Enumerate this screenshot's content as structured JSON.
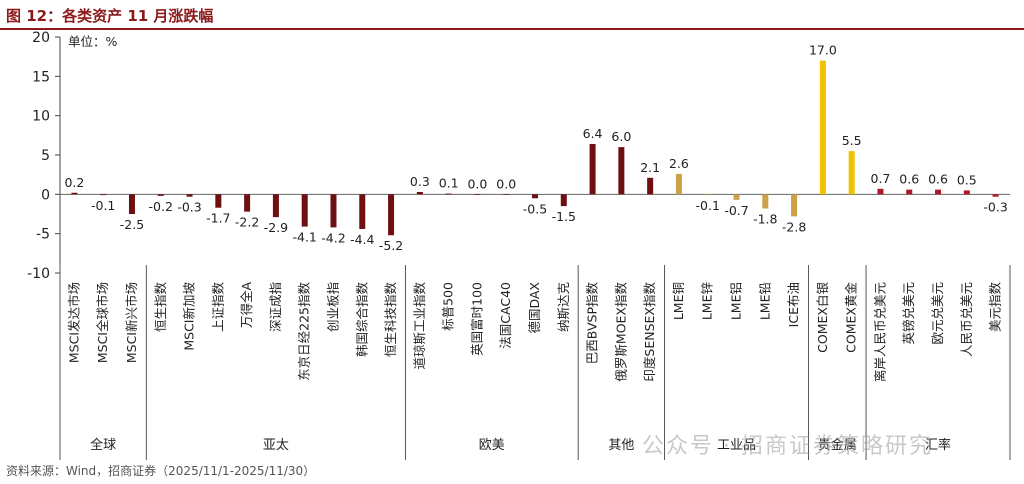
{
  "header": {
    "title": "图 12：各类资产 11 月涨跌幅"
  },
  "footer": {
    "source": "资料来源：Wind，招商证券（2025/11/1-2025/11/30）"
  },
  "watermark": {
    "text": "公众号 · 招商证券策略研究"
  },
  "colors": {
    "title": "#8b1a1a",
    "darkred": "#6e0f14",
    "gold": "#c9a24a",
    "yellow": "#f2c200",
    "red": "#b0172b"
  },
  "chart_data": {
    "type": "bar",
    "unit_label": "单位：%",
    "ylim": [
      -10,
      20
    ],
    "yticks": [
      -10,
      -5,
      0,
      5,
      10,
      15,
      20
    ],
    "grid": false,
    "categories": [
      "MSCI发达市场",
      "MSCI全球市场",
      "MSCI新兴市场",
      "恒生指数",
      "MSCI新加坡",
      "上证指数",
      "万得全A",
      "深证成指",
      "东京日经225指数",
      "创业板指",
      "韩国综合指数",
      "恒生科技指数",
      "道琼斯工业指数",
      "标普500",
      "英国富时100",
      "法国CAC40",
      "德国DAX",
      "纳斯达克",
      "巴西BVSP指数",
      "俄罗斯MOEX指数",
      "印度SENSEX指数",
      "LME铜",
      "LME锌",
      "LME铝",
      "LME铅",
      "ICE布油",
      "COMEX白银",
      "COMEX黄金",
      "离岸人民币兑美元",
      "英镑兑美元",
      "欧元兑美元",
      "人民币兑美元",
      "美元指数"
    ],
    "values": [
      0.2,
      -0.1,
      -2.5,
      -0.2,
      -0.3,
      -1.7,
      -2.2,
      -2.9,
      -4.1,
      -4.2,
      -4.4,
      -5.2,
      0.3,
      0.1,
      0.0,
      0.0,
      -0.5,
      -1.5,
      6.4,
      6.0,
      2.1,
      2.6,
      -0.1,
      -0.7,
      -1.8,
      -2.8,
      17.0,
      5.5,
      0.7,
      0.6,
      0.6,
      0.5,
      -0.3
    ],
    "labels": [
      "0.2",
      "-0.1",
      "-2.5",
      "-0.2",
      "-0.3",
      "-1.7",
      "-2.2",
      "-2.9",
      "-4.1",
      "-4.2",
      "-4.4",
      "-5.2",
      "0.3",
      "0.1",
      "0.0",
      "0.0",
      "-0.5",
      "-1.5",
      "6.4",
      "6.0",
      "2.1",
      "2.6",
      "-0.1",
      "-0.7",
      "-1.8",
      "-2.8",
      "17.0",
      "5.5",
      "0.7",
      "0.6",
      "0.6",
      "0.5",
      "-0.3"
    ],
    "colors": [
      "darkred",
      "darkred",
      "darkred",
      "darkred",
      "darkred",
      "darkred",
      "darkred",
      "darkred",
      "darkred",
      "darkred",
      "darkred",
      "darkred",
      "darkred",
      "darkred",
      "darkred",
      "darkred",
      "darkred",
      "darkred",
      "darkred",
      "darkred",
      "darkred",
      "gold",
      "gold",
      "gold",
      "gold",
      "gold",
      "yellow",
      "yellow",
      "red",
      "red",
      "red",
      "red",
      "red"
    ],
    "groups": [
      {
        "name": "全球",
        "count": 3
      },
      {
        "name": "亚太",
        "count": 9
      },
      {
        "name": "欧美",
        "count": 6
      },
      {
        "name": "其他",
        "count": 3
      },
      {
        "name": "工业品",
        "count": 5
      },
      {
        "name": "贵金属",
        "count": 2
      },
      {
        "name": "汇率",
        "count": 5
      }
    ]
  }
}
